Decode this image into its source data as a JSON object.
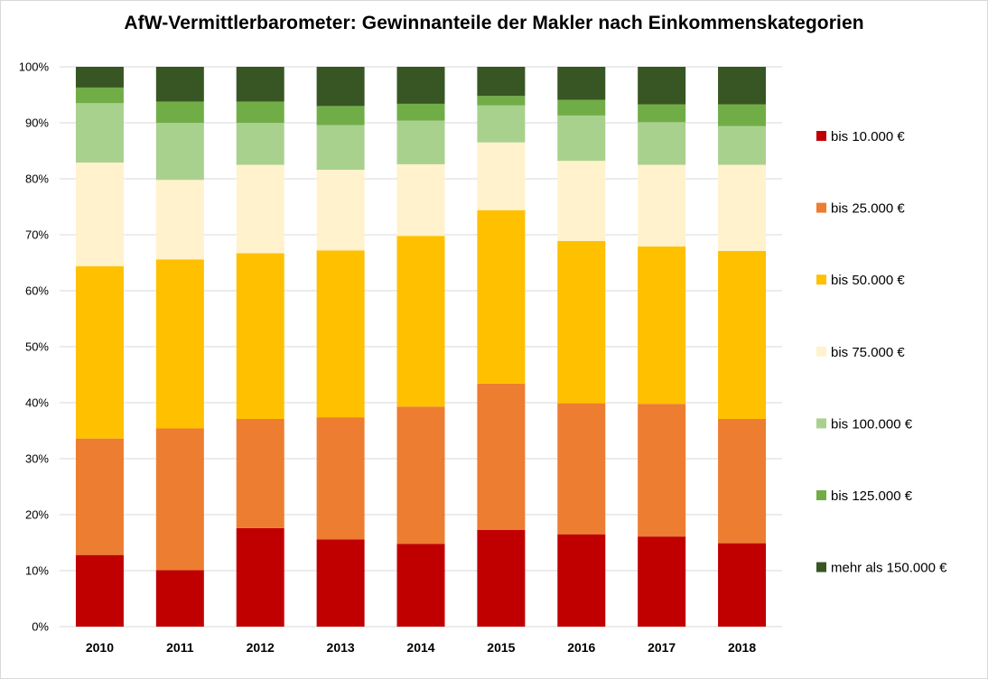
{
  "chart_data": {
    "type": "bar",
    "stacked": "percent",
    "title": "AfW-Vermittlerbarometer: Gewinnanteile der Makler nach Einkommenskategorien",
    "categories": [
      "2010",
      "2011",
      "2012",
      "2013",
      "2014",
      "2015",
      "2016",
      "2017",
      "2018"
    ],
    "ylim": [
      0,
      100
    ],
    "yticks": [
      "0%",
      "10%",
      "20%",
      "30%",
      "40%",
      "50%",
      "60%",
      "70%",
      "80%",
      "90%",
      "100%"
    ],
    "grid": true,
    "legend_position": "right",
    "series": [
      {
        "name": "bis 10.000 €",
        "color": "#c00000",
        "values": [
          12.8,
          10.1,
          17.6,
          15.6,
          14.8,
          17.3,
          16.5,
          16.1,
          14.9
        ]
      },
      {
        "name": "bis 25.000 €",
        "color": "#ed7d31",
        "values": [
          20.8,
          25.3,
          19.5,
          21.8,
          24.5,
          26.1,
          23.4,
          23.7,
          22.2
        ]
      },
      {
        "name": "bis 50.000 €",
        "color": "#ffc000",
        "values": [
          30.8,
          30.2,
          29.6,
          29.8,
          30.5,
          31.0,
          29.0,
          28.1,
          30.0
        ]
      },
      {
        "name": "bis 75.000 €",
        "color": "#fff2cc",
        "values": [
          18.5,
          14.2,
          15.8,
          14.4,
          12.8,
          12.1,
          14.3,
          14.6,
          15.4
        ]
      },
      {
        "name": "bis 100.000 €",
        "color": "#a9d18e",
        "values": [
          10.6,
          10.2,
          7.5,
          8.0,
          7.8,
          6.6,
          8.1,
          7.6,
          6.9
        ]
      },
      {
        "name": "bis 125.000 €",
        "color": "#70ad47",
        "values": [
          2.8,
          3.8,
          3.8,
          3.4,
          3.0,
          1.7,
          2.8,
          3.2,
          3.9
        ]
      },
      {
        "name": "mehr als 150.000 €",
        "color": "#375623",
        "values": [
          3.7,
          6.2,
          6.2,
          7.0,
          6.6,
          5.2,
          5.9,
          6.7,
          6.7
        ]
      }
    ]
  }
}
